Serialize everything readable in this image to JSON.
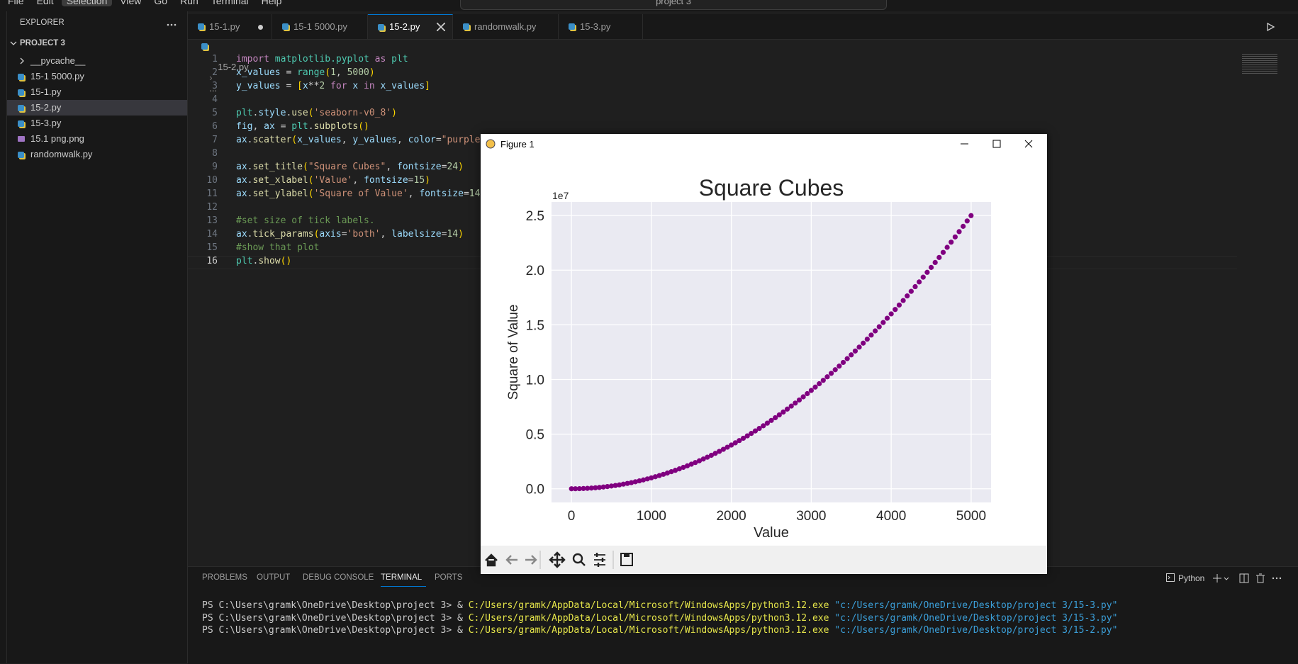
{
  "menu": [
    "File",
    "Edit",
    "Selection",
    "View",
    "Go",
    "Run",
    "Terminal",
    "Help"
  ],
  "search": "project 3",
  "explorer": {
    "title": "EXPLORER",
    "folder": "PROJECT 3",
    "items": [
      "__pycache__",
      "15-1 5000.py",
      "15-1.py",
      "15-2.py",
      "15-3.py",
      "15.1 png.png",
      "randomwalk.py"
    ]
  },
  "tabs": [
    "15-1.py",
    "15-1 5000.py",
    "15-2.py",
    "randomwalk.py",
    "15-3.py"
  ],
  "breadcrumb": [
    "15-2.py",
    "..."
  ],
  "editor": {
    "line_numbers": [
      1,
      2,
      3,
      4,
      5,
      6,
      7,
      8,
      9,
      10,
      11,
      12,
      13,
      14,
      15,
      16
    ],
    "lines": [
      [
        [
          "import",
          "#c586c0"
        ],
        [
          " ",
          "#cccccc"
        ],
        [
          "matplotlib.pyplot",
          "#4ec9b0"
        ],
        [
          " as ",
          "#c586c0"
        ],
        [
          "plt",
          "#4ec9b0"
        ]
      ],
      [
        [
          "x_values",
          "#9cdcfe"
        ],
        [
          " = ",
          "#cccccc"
        ],
        [
          "range",
          "#4ec9b0"
        ],
        [
          "(",
          "#ffd700"
        ],
        [
          "1",
          "#b5cea8"
        ],
        [
          ", ",
          "#cccccc"
        ],
        [
          "5000",
          "#b5cea8"
        ],
        [
          ")",
          "#ffd700"
        ]
      ],
      [
        [
          "y_values",
          "#9cdcfe"
        ],
        [
          " = ",
          "#cccccc"
        ],
        [
          "[",
          "#ffd700"
        ],
        [
          "x",
          "#9cdcfe"
        ],
        [
          "**",
          "#cccccc"
        ],
        [
          "2",
          "#b5cea8"
        ],
        [
          " for ",
          "#c586c0"
        ],
        [
          "x",
          "#9cdcfe"
        ],
        [
          " in ",
          "#c586c0"
        ],
        [
          "x_values",
          "#9cdcfe"
        ],
        [
          "]",
          "#ffd700"
        ]
      ],
      [],
      [
        [
          "plt",
          "#4ec9b0"
        ],
        [
          ".",
          "#cccccc"
        ],
        [
          "style",
          "#9cdcfe"
        ],
        [
          ".",
          "#cccccc"
        ],
        [
          "use",
          "#dcdcaa"
        ],
        [
          "(",
          "#ffd700"
        ],
        [
          "'seaborn-v0_8'",
          "#ce9178"
        ],
        [
          ")",
          "#ffd700"
        ]
      ],
      [
        [
          "fig",
          "#9cdcfe"
        ],
        [
          ", ",
          "#cccccc"
        ],
        [
          "ax",
          "#9cdcfe"
        ],
        [
          " = ",
          "#cccccc"
        ],
        [
          "plt",
          "#4ec9b0"
        ],
        [
          ".",
          "#cccccc"
        ],
        [
          "subplots",
          "#dcdcaa"
        ],
        [
          "()",
          "#ffd700"
        ]
      ],
      [
        [
          "ax",
          "#9cdcfe"
        ],
        [
          ".",
          "#cccccc"
        ],
        [
          "scatter",
          "#dcdcaa"
        ],
        [
          "(",
          "#ffd700"
        ],
        [
          "x_values",
          "#9cdcfe"
        ],
        [
          ", ",
          "#cccccc"
        ],
        [
          "y_values",
          "#9cdcfe"
        ],
        [
          ", ",
          "#cccccc"
        ],
        [
          "color",
          "#9cdcfe"
        ],
        [
          "=",
          "#cccccc"
        ],
        [
          "\"purple\"",
          "#ce9178"
        ]
      ],
      [],
      [
        [
          "ax",
          "#9cdcfe"
        ],
        [
          ".",
          "#cccccc"
        ],
        [
          "set_title",
          "#dcdcaa"
        ],
        [
          "(",
          "#ffd700"
        ],
        [
          "\"Square Cubes\"",
          "#ce9178"
        ],
        [
          ", ",
          "#cccccc"
        ],
        [
          "fontsize",
          "#9cdcfe"
        ],
        [
          "=",
          "#cccccc"
        ],
        [
          "24",
          "#b5cea8"
        ],
        [
          ")",
          "#ffd700"
        ]
      ],
      [
        [
          "ax",
          "#9cdcfe"
        ],
        [
          ".",
          "#cccccc"
        ],
        [
          "set_xlabel",
          "#dcdcaa"
        ],
        [
          "(",
          "#ffd700"
        ],
        [
          "'Value'",
          "#ce9178"
        ],
        [
          ", ",
          "#cccccc"
        ],
        [
          "fontsize",
          "#9cdcfe"
        ],
        [
          "=",
          "#cccccc"
        ],
        [
          "15",
          "#b5cea8"
        ],
        [
          ")",
          "#ffd700"
        ]
      ],
      [
        [
          "ax",
          "#9cdcfe"
        ],
        [
          ".",
          "#cccccc"
        ],
        [
          "set_ylabel",
          "#dcdcaa"
        ],
        [
          "(",
          "#ffd700"
        ],
        [
          "'Square of Value'",
          "#ce9178"
        ],
        [
          ", ",
          "#cccccc"
        ],
        [
          "fontsize",
          "#9cdcfe"
        ],
        [
          "=",
          "#cccccc"
        ],
        [
          "14",
          "#b5cea8"
        ],
        [
          ")",
          "#ffd700"
        ]
      ],
      [],
      [
        [
          "#set size of tick labels.",
          "#6a9955"
        ]
      ],
      [
        [
          "ax",
          "#9cdcfe"
        ],
        [
          ".",
          "#cccccc"
        ],
        [
          "tick_params",
          "#dcdcaa"
        ],
        [
          "(",
          "#ffd700"
        ],
        [
          "axis",
          "#9cdcfe"
        ],
        [
          "=",
          "#cccccc"
        ],
        [
          "'both'",
          "#ce9178"
        ],
        [
          ", ",
          "#cccccc"
        ],
        [
          "labelsize",
          "#9cdcfe"
        ],
        [
          "=",
          "#cccccc"
        ],
        [
          "14",
          "#b5cea8"
        ],
        [
          ")",
          "#ffd700"
        ]
      ],
      [
        [
          "#show that plot",
          "#6a9955"
        ]
      ],
      [
        [
          "plt",
          "#4ec9b0"
        ],
        [
          ".",
          "#cccccc"
        ],
        [
          "show",
          "#dcdcaa"
        ],
        [
          "()",
          "#ffd700"
        ]
      ]
    ]
  },
  "panel": {
    "tabs": [
      "PROBLEMS",
      "OUTPUT",
      "DEBUG CONSOLE",
      "TERMINAL",
      "PORTS"
    ],
    "shell": "Python",
    "terminal": [
      [
        [
          "PS C:\\Users\\gramk\\OneDrive\\Desktop\\project 3> & ",
          "#cccccc"
        ],
        [
          "C:/Users/gramk/AppData/Local/Microsoft/WindowsApps/python3.12.exe",
          "#e5e54a"
        ],
        [
          " ",
          "#cccccc"
        ],
        [
          "\"c:/Users/gramk/OneDrive/Desktop/project 3/15-3.py\"",
          "#3b9fd9"
        ]
      ],
      [
        [
          "PS C:\\Users\\gramk\\OneDrive\\Desktop\\project 3> & ",
          "#cccccc"
        ],
        [
          "C:/Users/gramk/AppData/Local/Microsoft/WindowsApps/python3.12.exe",
          "#e5e54a"
        ],
        [
          " ",
          "#cccccc"
        ],
        [
          "\"c:/Users/gramk/OneDrive/Desktop/project 3/15-3.py\"",
          "#3b9fd9"
        ]
      ],
      [
        [
          "PS C:\\Users\\gramk\\OneDrive\\Desktop\\project 3> & ",
          "#cccccc"
        ],
        [
          "C:/Users/gramk/AppData/Local/Microsoft/WindowsApps/python3.12.exe",
          "#e5e54a"
        ],
        [
          " ",
          "#cccccc"
        ],
        [
          "\"c:/Users/gramk/OneDrive/Desktop/project 3/15-2.py\"",
          "#3b9fd9"
        ]
      ]
    ]
  },
  "figure_window": {
    "title": "Figure 1"
  },
  "chart_data": {
    "type": "scatter",
    "title": "Square Cubes",
    "xlabel": "Value",
    "ylabel": "Square of Value",
    "y_offset_label": "1e7",
    "color": "purple",
    "x": [
      1,
      50,
      100,
      150,
      200,
      250,
      300,
      350,
      400,
      450,
      500,
      550,
      600,
      650,
      700,
      750,
      800,
      850,
      900,
      950,
      1000,
      1050,
      1100,
      1150,
      1200,
      1250,
      1300,
      1350,
      1400,
      1450,
      1500,
      1550,
      1600,
      1650,
      1700,
      1750,
      1800,
      1850,
      1900,
      1950,
      2000,
      2050,
      2100,
      2150,
      2200,
      2250,
      2300,
      2350,
      2400,
      2450,
      2500,
      2550,
      2600,
      2650,
      2700,
      2750,
      2800,
      2850,
      2900,
      2950,
      3000,
      3050,
      3100,
      3150,
      3200,
      3250,
      3300,
      3350,
      3400,
      3450,
      3500,
      3550,
      3600,
      3650,
      3700,
      3750,
      3800,
      3850,
      3900,
      3950,
      4000,
      4050,
      4100,
      4150,
      4200,
      4250,
      4300,
      4350,
      4400,
      4450,
      4500,
      4550,
      4600,
      4650,
      4700,
      4750,
      4800,
      4850,
      4900,
      4950,
      4999
    ],
    "values": [
      1,
      2500,
      10000,
      22500,
      40000,
      62500,
      90000,
      122500,
      160000,
      202500,
      250000,
      302500,
      360000,
      422500,
      490000,
      562500,
      640000,
      722500,
      810000,
      902500,
      1000000,
      1102500,
      1210000,
      1322500,
      1440000,
      1562500,
      1690000,
      1822500,
      1960000,
      2102500,
      2250000,
      2402500,
      2560000,
      2722500,
      2890000,
      3062500,
      3240000,
      3422500,
      3610000,
      3802500,
      4000000,
      4202500,
      4410000,
      4622500,
      4840000,
      5062500,
      5290000,
      5522500,
      5760000,
      6002500,
      6250000,
      6502500,
      6760000,
      7022500,
      7290000,
      7562500,
      7840000,
      8122500,
      8410000,
      8702500,
      9000000,
      9302500,
      9610000,
      9922500,
      10240000,
      10562500,
      10890000,
      11222500,
      11560000,
      11902500,
      12250000,
      12602500,
      12960000,
      13322500,
      13690000,
      14062500,
      14440000,
      14822500,
      15210000,
      15602500,
      16000000,
      16402500,
      16810000,
      17222500,
      17640000,
      18062500,
      18490000,
      18922500,
      19360000,
      19802500,
      20250000,
      20702500,
      21160000,
      21622500,
      22090000,
      22562500,
      23040000,
      23522500,
      24010000,
      24502500,
      24990001
    ],
    "xlim": [
      -248.9,
      5248.9
    ],
    "ylim": [
      -1249499,
      26239500
    ],
    "xticks": [
      0,
      1000,
      2000,
      3000,
      4000,
      5000
    ],
    "yticks": [
      {
        "value": 0,
        "label": "0.0"
      },
      {
        "value": 5000000,
        "label": "0.5"
      },
      {
        "value": 10000000,
        "label": "1.0"
      },
      {
        "value": 15000000,
        "label": "1.5"
      },
      {
        "value": 20000000,
        "label": "2.0"
      },
      {
        "value": 25000000,
        "label": "2.5"
      }
    ],
    "grid": true
  }
}
